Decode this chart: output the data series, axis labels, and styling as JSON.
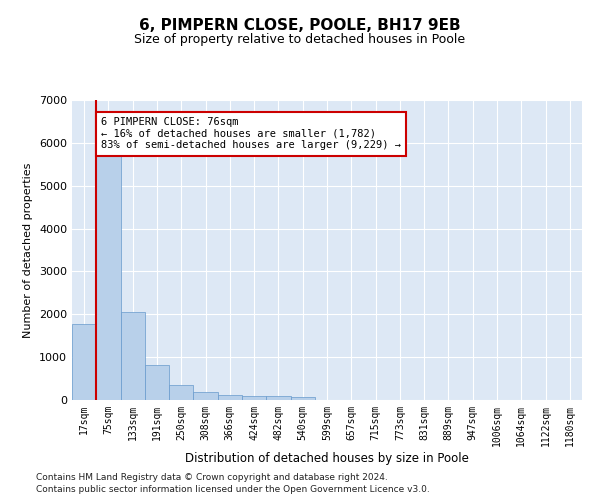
{
  "title": "6, PIMPERN CLOSE, POOLE, BH17 9EB",
  "subtitle": "Size of property relative to detached houses in Poole",
  "xlabel": "Distribution of detached houses by size in Poole",
  "ylabel": "Number of detached properties",
  "bar_color": "#b8d0ea",
  "bar_edge_color": "#6699cc",
  "bg_color": "#dde8f5",
  "grid_color": "#ffffff",
  "categories": [
    "17sqm",
    "75sqm",
    "133sqm",
    "191sqm",
    "250sqm",
    "308sqm",
    "366sqm",
    "424sqm",
    "482sqm",
    "540sqm",
    "599sqm",
    "657sqm",
    "715sqm",
    "773sqm",
    "831sqm",
    "889sqm",
    "947sqm",
    "1006sqm",
    "1064sqm",
    "1122sqm",
    "1180sqm"
  ],
  "values": [
    1782,
    5780,
    2060,
    820,
    340,
    185,
    115,
    105,
    95,
    75,
    0,
    0,
    0,
    0,
    0,
    0,
    0,
    0,
    0,
    0,
    0
  ],
  "vline_x_idx": 0.5,
  "annotation_line1": "6 PIMPERN CLOSE: 76sqm",
  "annotation_line2": "← 16% of detached houses are smaller (1,782)",
  "annotation_line3": "83% of semi-detached houses are larger (9,229) →",
  "vline_color": "#cc0000",
  "annotation_box_edge": "#cc0000",
  "ylim": [
    0,
    7000
  ],
  "yticks": [
    0,
    1000,
    2000,
    3000,
    4000,
    5000,
    6000,
    7000
  ],
  "footnote1": "Contains HM Land Registry data © Crown copyright and database right 2024.",
  "footnote2": "Contains public sector information licensed under the Open Government Licence v3.0."
}
